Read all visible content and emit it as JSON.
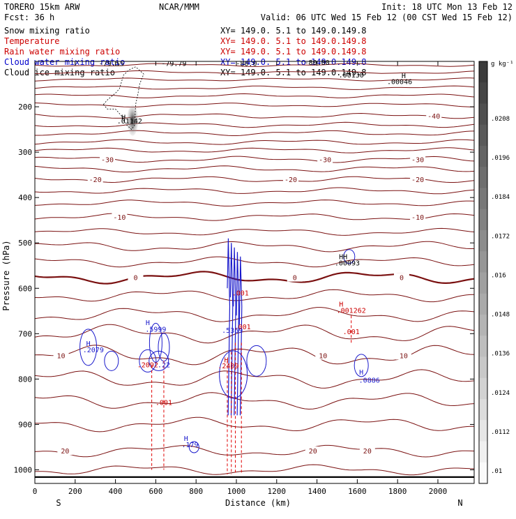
{
  "header": {
    "model": "TORERO  15km ARW",
    "center": "NCAR/MMM",
    "init": "Init: 18 UTC Mon 13 Feb 12",
    "fcst": "Fcst:   36 h",
    "valid": "Valid: 06 UTC Wed 15 Feb 12 (00 CST Wed 15 Feb 12)",
    "xy_text": "XY= 149.0.  5.1 to 149.0.149.8"
  },
  "legend": [
    {
      "label": "Snow mixing ratio",
      "color": "#000000"
    },
    {
      "label": "Temperature",
      "color": "#cc0000"
    },
    {
      "label": "Rain water mixing ratio",
      "color": "#cc0000"
    },
    {
      "label": "Cloud water mixing ratio",
      "color": "#0000cc"
    },
    {
      "label": "Cloud ice mixing ratio",
      "color": "#000000"
    }
  ],
  "colors": {
    "temperature": "#7a1010",
    "rain": "#e00000",
    "cloud_water": "#1a1acc",
    "ice": "#000000",
    "frame": "#000000"
  },
  "chart_data": {
    "type": "line",
    "xlabel": "Distance (km)",
    "ylabel": "Pressure (hPa)",
    "xlim": [
      0,
      2180
    ],
    "ylim": [
      1030,
      100
    ],
    "x_ticks": [
      0,
      200,
      400,
      600,
      800,
      1000,
      1200,
      1400,
      1600,
      1800,
      2000
    ],
    "y_ticks": [
      200,
      300,
      400,
      500,
      600,
      700,
      800,
      900,
      1000
    ],
    "left_end_label": "S",
    "right_end_label": "N",
    "colorbar": {
      "unit": "g kg⁻¹",
      "ticks": [
        ".0208",
        ".0196",
        ".0184",
        ".0172",
        ".016",
        ".0148",
        ".0136",
        ".0124",
        ".0112",
        ".01"
      ]
    },
    "isotherms": [
      {
        "p": 108,
        "amp": 1.5
      },
      {
        "p": 124,
        "amp": 1.5
      },
      {
        "p": 140,
        "amp": 1.5
      },
      {
        "p": 158,
        "amp": 1.8
      },
      {
        "p": 176,
        "amp": 2.0
      },
      {
        "p": 196,
        "amp": 2.0
      },
      {
        "p": 220,
        "amp": 2.5,
        "label": "-40",
        "label_x": [
          1980
        ]
      },
      {
        "p": 240,
        "amp": 2.5
      },
      {
        "p": 258,
        "amp": 2.5
      },
      {
        "p": 278,
        "amp": 2.5
      },
      {
        "p": 296,
        "amp": 2.5
      },
      {
        "p": 316,
        "amp": 3.0,
        "label": "-30",
        "label_x": [
          360,
          1440,
          1900
        ]
      },
      {
        "p": 337,
        "amp": 3.0
      },
      {
        "p": 360,
        "amp": 3.0,
        "label": "-20",
        "label_x": [
          300,
          1270,
          1900
        ]
      },
      {
        "p": 385,
        "amp": 3.0
      },
      {
        "p": 412,
        "amp": 3.0
      },
      {
        "p": 443,
        "amp": 3.5,
        "label": "-10",
        "label_x": [
          420,
          1900
        ]
      },
      {
        "p": 476,
        "amp": 3.5
      },
      {
        "p": 508,
        "amp": 5.0
      },
      {
        "p": 542,
        "amp": 5.0
      },
      {
        "p": 576,
        "amp": 6.0,
        "label": "0",
        "label_x": [
          500,
          1290,
          1820
        ],
        "bold": true
      },
      {
        "p": 616,
        "amp": 6.0
      },
      {
        "p": 658,
        "amp": 7.0
      },
      {
        "p": 700,
        "amp": 9.0
      },
      {
        "p": 748,
        "amp": 10.0,
        "label": "10",
        "label_x": [
          130,
          1430,
          1830
        ]
      },
      {
        "p": 800,
        "amp": 9.0
      },
      {
        "p": 848,
        "amp": 8.0
      },
      {
        "p": 900,
        "amp": 7.0
      },
      {
        "p": 958,
        "amp": 6.0,
        "label": "20",
        "label_x": [
          150,
          1380,
          1650
        ]
      },
      {
        "p": 1000,
        "amp": 5.0
      }
    ],
    "surface_p": 1016,
    "ice_label_values": [
      "-79.55",
      "-79.79",
      "-80.0",
      "-80.00"
    ],
    "annotations": [
      {
        "text": ".01142",
        "x": 470,
        "p": 237,
        "color": "#000000"
      },
      {
        "text": "H",
        "x": 440,
        "p": 228,
        "color": "#000000"
      },
      {
        "text": ".00130",
        "x": 1570,
        "p": 135,
        "color": "#000000"
      },
      {
        "text": ".00046",
        "x": 1810,
        "p": 150,
        "color": "#000000"
      },
      {
        "text": "H",
        "x": 1830,
        "p": 137,
        "color": "#000000"
      },
      {
        "text": "HH",
        "x": 1530,
        "p": 536,
        "color": "#000000"
      },
      {
        "text": ".00093",
        "x": 1550,
        "p": 550,
        "color": "#000000"
      },
      {
        "text": ".5999",
        "x": 600,
        "p": 696,
        "color": "#1a1acc"
      },
      {
        "text": "H",
        "x": 560,
        "p": 681,
        "color": "#1a1acc"
      },
      {
        "text": ".2079",
        "x": 290,
        "p": 741,
        "color": "#1a1acc"
      },
      {
        "text": "H",
        "x": 265,
        "p": 727,
        "color": "#1a1acc"
      },
      {
        "text": ".2092",
        "x": 560,
        "p": 774,
        "color": "#cc0000"
      },
      {
        "text": ".22",
        "x": 640,
        "p": 774,
        "color": "#1a1acc"
      },
      {
        "text": ".001",
        "x": 640,
        "p": 857,
        "color": "#cc0000"
      },
      {
        "text": ".5369",
        "x": 980,
        "p": 698,
        "color": "#1a1acc"
      },
      {
        "text": ".001",
        "x": 1020,
        "p": 616,
        "color": "#cc0000"
      },
      {
        "text": ".001",
        "x": 1030,
        "p": 690,
        "color": "#cc0000"
      },
      {
        "text": ".2409",
        "x": 960,
        "p": 776,
        "color": "#cc0000"
      },
      {
        "text": "H",
        "x": 950,
        "p": 763,
        "color": "#cc0000"
      },
      {
        "text": ".001262",
        "x": 1570,
        "p": 654,
        "color": "#cc0000"
      },
      {
        "text": "H",
        "x": 1520,
        "p": 640,
        "color": "#cc0000"
      },
      {
        "text": ".001",
        "x": 1570,
        "p": 701,
        "color": "#cc0000"
      },
      {
        "text": ".0886",
        "x": 1660,
        "p": 808,
        "color": "#1a1acc"
      },
      {
        "text": "H",
        "x": 1620,
        "p": 790,
        "color": "#1a1acc"
      },
      {
        "text": ".179",
        "x": 770,
        "p": 950,
        "color": "#1a1acc"
      },
      {
        "text": "H",
        "x": 750,
        "p": 936,
        "color": "#1a1acc"
      }
    ]
  }
}
